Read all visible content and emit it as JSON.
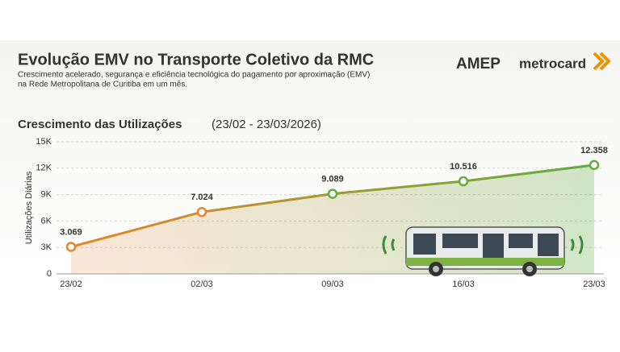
{
  "header": {
    "title": "Evolução EMV no Transporte Coletivo da RMC",
    "subtitle_lines": [
      "Crescimento acelerado, segurança e eficiência tecnológica do pagamento por aproximação (EMV)",
      "na Rede Metropolitana de Curitiba em um mês."
    ],
    "logos": [
      "AMEP",
      "metrocard"
    ]
  },
  "chart_data": {
    "type": "line",
    "title": "Crescimento das Utilizações",
    "period": "(23/02 - 23/03/2026)",
    "y_label": "Utilizações Diárias",
    "categories": [
      "23/02",
      "02/03",
      "09/03",
      "16/03",
      "23/03"
    ],
    "values": [
      3069,
      7024,
      9089,
      10516,
      12358
    ],
    "value_labels": [
      "3.069",
      "7.024",
      "9.089",
      "10.516",
      "12.358"
    ],
    "line_colors": [
      "#e8842a",
      "#5fae3e"
    ],
    "ylim": [
      0,
      15000
    ],
    "yticks": [
      0,
      {
        "value": 3000,
        "label": "3K"
      },
      {
        "value": 6000,
        "label": "6K"
      },
      {
        "value": 9000,
        "label": "9K"
      },
      {
        "value": 12000,
        "label": "12K"
      },
      {
        "value": 15000,
        "label": "15K"
      }
    ],
    "grid": true
  }
}
